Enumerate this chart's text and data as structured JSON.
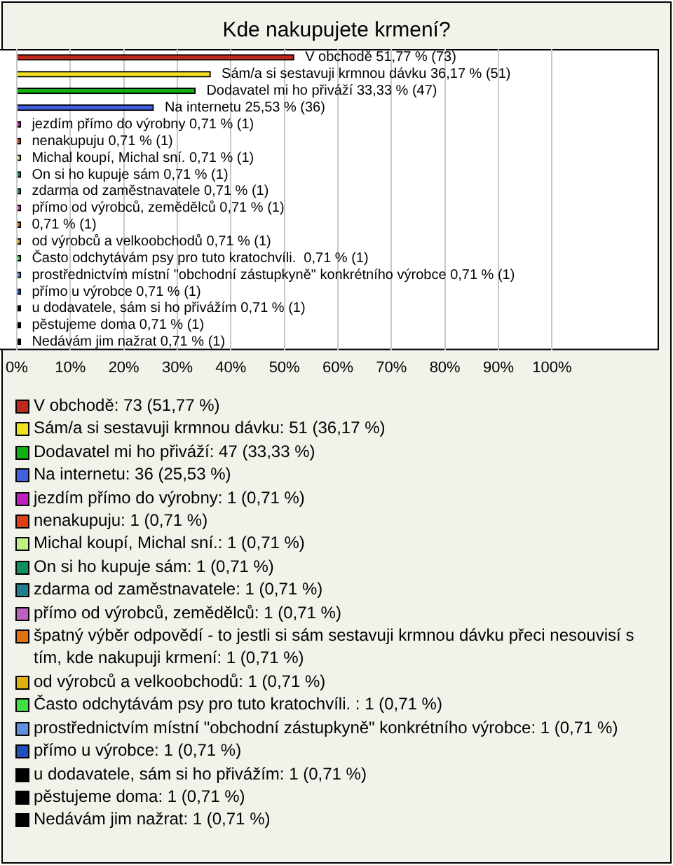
{
  "chart_data": {
    "type": "bar",
    "orientation": "horizontal",
    "title": "Kde nakupujete krmení?",
    "categories": [
      "V obchodě",
      "Sám/a si sestavuji krmnou dávku",
      "Dodavatel mi ho přiváží",
      "Na internetu",
      "jezdím přímo do výrobny",
      "nenakupuju",
      "Michal koupí, Michal sní.",
      "On si ho kupuje sám",
      "zdarma od zaměstnavatele",
      "přímo od výrobců, zemědělců",
      null,
      "od výrobců a velkoobchodů",
      "Často odchytávám psy pro tuto kratochvíli. ",
      "prostřednictvím místní \"obchodní zástupkyně\" konkrétního výrobce",
      "přímo u výrobce",
      "u dodavatele, sám si ho přivážím",
      "pěstujeme doma",
      "Nedávám jim nažrat"
    ],
    "values": [
      51.77,
      36.17,
      33.33,
      25.53,
      0.71,
      0.71,
      0.71,
      0.71,
      0.71,
      0.71,
      0.71,
      0.71,
      0.71,
      0.71,
      0.71,
      0.71,
      0.71,
      0.71
    ],
    "colors": [
      "#c0281c",
      "#f0e020",
      "#10b010",
      "#4060e0",
      "#c020c0",
      "#e04010",
      "#c0f080",
      "#10905a",
      "#208090",
      "#c060c0",
      "#e07010",
      "#e0b010",
      "#40e040",
      "#6090e0",
      "#2050c0",
      "#000000",
      "#000000",
      "#000000"
    ],
    "value_labels": [
      "51,77 % (73)",
      "36,17 % (51)",
      "33,33 % (47)",
      "25,53 % (36)",
      "0,71 % (1)",
      "0,71 % (1)",
      "0,71 % (1)",
      "0,71 % (1)",
      "0,71 % (1)",
      "0,71 % (1)",
      "0,71 % (1)",
      "0,71 % (1)",
      "0,71 % (1)",
      "0,71 % (1)",
      "0,71 % (1)",
      "0,71 % (1)",
      "0,71 % (1)",
      "0,71 % (1)"
    ],
    "annotations": [
      "V obchodě: 73 (51,77 %)",
      "Sám/a si sestavuji krmnou dávku: 51 (36,17 %)",
      "Dodavatel mi ho přiváží: 47 (33,33 %)",
      "Na internetu: 36 (25,53 %)",
      "jezdím přímo do výrobny: 1 (0,71 %)",
      "nenakupuju: 1 (0,71 %)",
      "Michal koupí, Michal sní.: 1 (0,71 %)",
      "On si ho kupuje sám: 1 (0,71 %)",
      "zdarma od zaměstnavatele: 1 (0,71 %)",
      "přímo od výrobců, zemědělců: 1 (0,71 %)",
      "špatný výběr odpovědí - to jestli si sám sestavuji krmnou dávku přeci nesouvisí s tím, kde nakupuji krmení: 1 (0,71 %)",
      "od výrobců a velkoobchodů: 1 (0,71 %)",
      "Často odchytávám psy pro tuto kratochvíli. : 1 (0,71 %)",
      "prostřednictvím místní \"obchodní zástupkyně\" konkrétního výrobce: 1 (0,71 %)",
      "přímo u výrobce: 1 (0,71 %)",
      "u dodavatele, sám si ho přivážím: 1 (0,71 %)",
      "pěstujeme doma: 1 (0,71 %)",
      "Nedávám jim nažrat: 1 (0,71 %)"
    ],
    "xlim": [
      0,
      120
    ],
    "xticks": [
      {
        "value": 0,
        "label": "0%"
      },
      {
        "value": 10,
        "label": "10%"
      },
      {
        "value": 20,
        "label": "20%"
      },
      {
        "value": 30,
        "label": "30%"
      },
      {
        "value": 40,
        "label": "40%"
      },
      {
        "value": 50,
        "label": "50%"
      },
      {
        "value": 60,
        "label": "60%"
      },
      {
        "value": 70,
        "label": "70%"
      },
      {
        "value": 80,
        "label": "80%"
      },
      {
        "value": 90,
        "label": "90%"
      },
      {
        "value": 100,
        "label": "100%"
      }
    ],
    "grid": "x",
    "tick_labels": "x"
  }
}
